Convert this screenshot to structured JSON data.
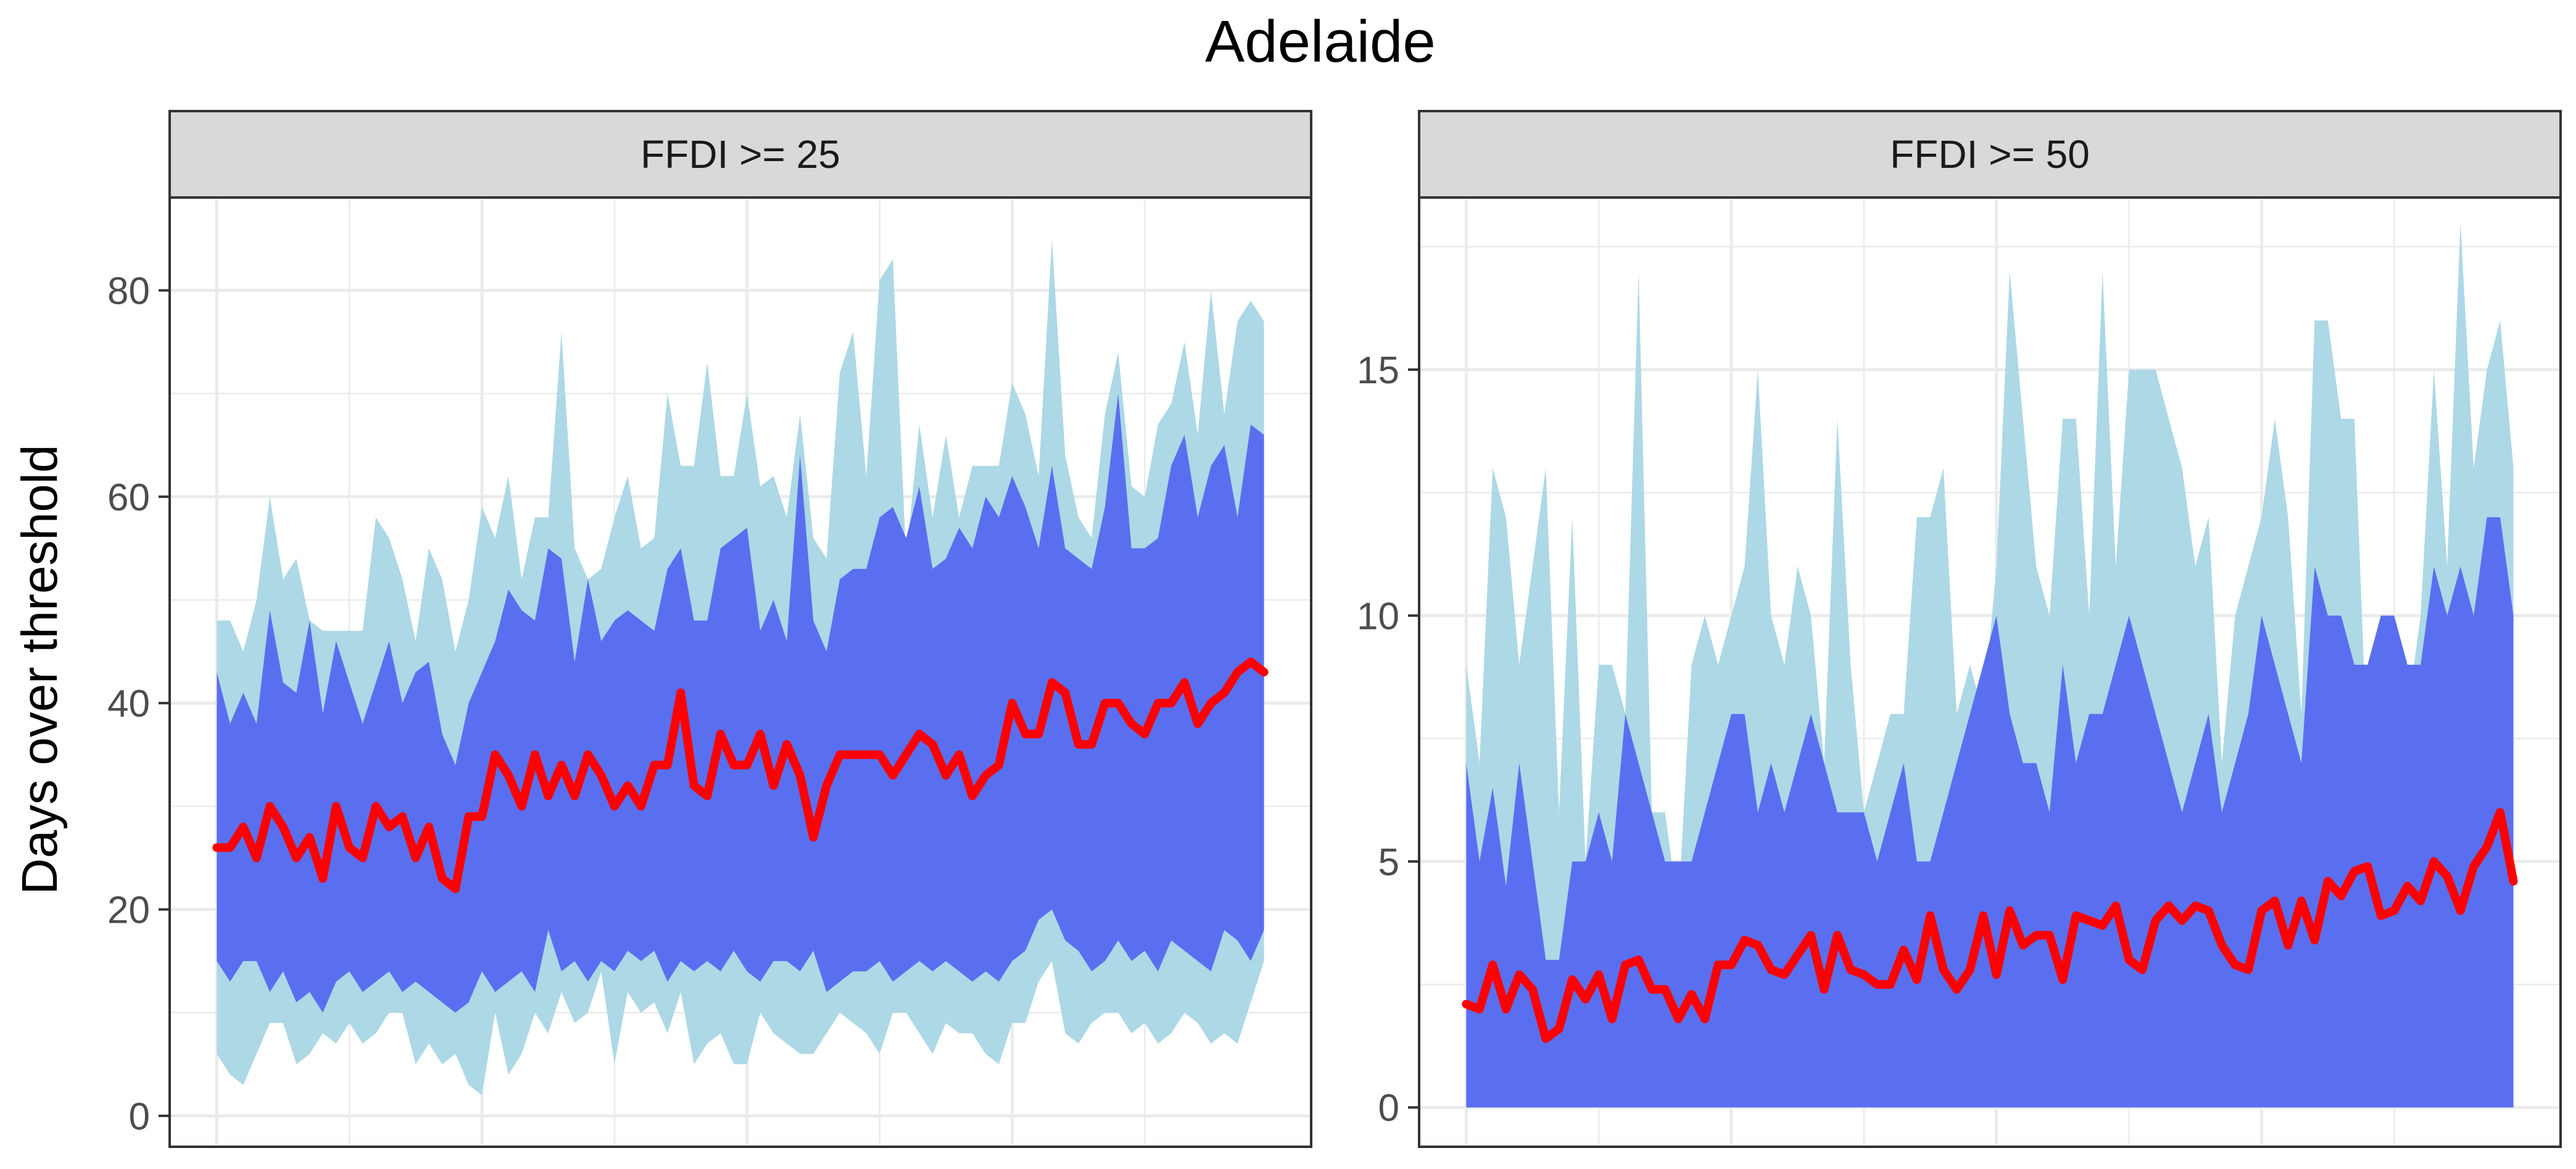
{
  "chart_data": {
    "type": "area",
    "title": "Adelaide",
    "ylabel": "Days over threshold",
    "xlabel": "",
    "x_tick_labels_shown": false,
    "grid": true,
    "legend": "none",
    "colors": {
      "outer_band": "#add8e6",
      "inner_band": "#5a6ff0",
      "line": "#ff0000",
      "grid": "#ebebeb",
      "strip": "#d9d9d9",
      "panel_border": "#333333"
    },
    "x": [
      1,
      2,
      3,
      4,
      5,
      6,
      7,
      8,
      9,
      10,
      11,
      12,
      13,
      14,
      15,
      16,
      17,
      18,
      19,
      20,
      21,
      22,
      23,
      24,
      25,
      26,
      27,
      28,
      29,
      30,
      31,
      32,
      33,
      34,
      35,
      36,
      37,
      38,
      39,
      40,
      41,
      42,
      43,
      44,
      45,
      46,
      47,
      48,
      49,
      50,
      51,
      52,
      53,
      54,
      55,
      56,
      57,
      58,
      59,
      60,
      61,
      62,
      63,
      64,
      65,
      66,
      67,
      68,
      69,
      70,
      71,
      72,
      73,
      74,
      75,
      76,
      77,
      78,
      79,
      80
    ],
    "panels": [
      {
        "label": "FFDI >= 25",
        "ylim": [
          -3,
          89
        ],
        "y_ticks": [
          0,
          20,
          40,
          60,
          80
        ],
        "outer_upper": [
          48,
          48,
          45,
          50,
          60,
          52,
          54,
          48,
          47,
          47,
          47,
          47,
          58,
          56,
          52,
          46,
          55,
          52,
          45,
          50,
          59,
          56,
          62,
          52,
          58,
          58,
          76,
          55,
          52,
          53,
          58,
          62,
          55,
          56,
          70,
          63,
          63,
          73,
          62,
          62,
          70,
          61,
          62,
          58,
          68,
          56,
          54,
          72,
          76,
          62,
          81,
          83,
          54,
          67,
          58,
          66,
          58,
          63,
          63,
          63,
          71,
          68,
          62,
          85,
          64,
          58,
          56,
          68,
          74,
          61,
          60,
          67,
          69,
          75,
          66,
          80,
          68,
          77,
          79,
          77
        ],
        "inner_upper": [
          43,
          38,
          41,
          38,
          49,
          42,
          41,
          48,
          39,
          46,
          42,
          38,
          42,
          46,
          40,
          43,
          44,
          37,
          34,
          40,
          43,
          46,
          51,
          49,
          48,
          55,
          54,
          44,
          52,
          46,
          48,
          49,
          48,
          47,
          53,
          55,
          48,
          48,
          55,
          56,
          57,
          47,
          50,
          46,
          64,
          48,
          45,
          52,
          53,
          53,
          58,
          59,
          56,
          61,
          53,
          54,
          57,
          55,
          60,
          58,
          62,
          59,
          55,
          63,
          55,
          54,
          53,
          59,
          70,
          55,
          55,
          56,
          63,
          66,
          58,
          63,
          65,
          58,
          67,
          66
        ],
        "line": [
          26,
          26,
          28,
          25,
          30,
          28,
          25,
          27,
          23,
          30,
          26,
          25,
          30,
          28,
          29,
          25,
          28,
          23,
          22,
          29,
          29,
          35,
          33,
          30,
          35,
          31,
          34,
          31,
          35,
          33,
          30,
          32,
          30,
          34,
          34,
          41,
          32,
          31,
          37,
          34,
          34,
          37,
          32,
          36,
          33,
          27,
          32,
          35,
          35,
          35,
          35,
          33,
          35,
          37,
          36,
          33,
          35,
          31,
          33,
          34,
          40,
          37,
          37,
          42,
          41,
          36,
          36,
          40,
          40,
          38,
          37,
          40,
          40,
          42,
          38,
          40,
          41,
          43,
          44,
          43
        ],
        "inner_lower": [
          15,
          13,
          15,
          15,
          12,
          14,
          11,
          12,
          10,
          13,
          14,
          12,
          13,
          14,
          12,
          13,
          12,
          11,
          10,
          11,
          14,
          12,
          13,
          14,
          12,
          18,
          14,
          15,
          13,
          15,
          14,
          16,
          15,
          16,
          13,
          15,
          14,
          15,
          14,
          16,
          14,
          13,
          15,
          15,
          14,
          16,
          12,
          13,
          14,
          14,
          15,
          13,
          14,
          15,
          14,
          15,
          14,
          13,
          14,
          13,
          15,
          16,
          19,
          20,
          17,
          16,
          14,
          15,
          17,
          15,
          16,
          14,
          17,
          16,
          15,
          14,
          18,
          17,
          15,
          18
        ],
        "outer_lower": [
          6,
          4,
          3,
          6,
          9,
          9,
          5,
          6,
          8,
          7,
          9,
          7,
          8,
          10,
          10,
          5,
          7,
          5,
          6,
          3,
          2,
          10,
          4,
          6,
          10,
          8,
          12,
          9,
          10,
          14,
          5,
          12,
          10,
          11,
          8,
          12,
          5,
          7,
          8,
          5,
          5,
          10,
          8,
          7,
          6,
          6,
          8,
          10,
          9,
          8,
          6,
          10,
          10,
          8,
          6,
          9,
          8,
          8,
          6,
          5,
          9,
          9,
          13,
          15,
          8,
          7,
          9,
          10,
          10,
          8,
          9,
          7,
          8,
          10,
          9,
          7,
          8,
          7,
          11,
          15
        ]
      },
      {
        "label": "FFDI >= 50",
        "ylim": [
          -0.8,
          18.5
        ],
        "y_ticks": [
          0,
          5,
          10,
          15
        ],
        "outer_upper": [
          9,
          7,
          13,
          12,
          9,
          11,
          13,
          6,
          12,
          5,
          9,
          9,
          8,
          17,
          6,
          6,
          4,
          9,
          10,
          9,
          10,
          11,
          15,
          10,
          9,
          11,
          10,
          7,
          14,
          9,
          6,
          7,
          8,
          8,
          12,
          12,
          13,
          8,
          9,
          8,
          11,
          17,
          14,
          11,
          10,
          14,
          14,
          10,
          17,
          11,
          15,
          15,
          15,
          14,
          13,
          11,
          12,
          7,
          10,
          11,
          12,
          14,
          12,
          8,
          16,
          16,
          14,
          14,
          7,
          7,
          8,
          8,
          10,
          15,
          11,
          18,
          13,
          15,
          16,
          13
        ],
        "inner_upper": [
          7,
          5,
          6.5,
          4.5,
          7,
          5,
          3,
          3,
          5,
          5,
          6,
          5,
          8,
          7,
          6,
          5,
          5,
          5,
          6,
          7,
          8,
          8,
          6,
          7,
          6,
          7,
          8,
          7,
          6,
          6,
          6,
          5,
          6,
          7,
          5,
          5,
          6,
          7,
          8,
          9,
          10,
          8,
          7,
          7,
          6,
          9,
          7,
          8,
          8,
          9,
          10,
          9,
          8,
          7,
          6,
          7,
          8,
          6,
          7,
          8,
          10,
          9,
          8,
          7,
          11,
          10,
          10,
          9,
          9,
          10,
          10,
          9,
          9,
          11,
          10,
          11,
          10,
          12,
          12,
          10
        ],
        "line": [
          2.1,
          2.0,
          2.9,
          2.0,
          2.7,
          2.4,
          1.4,
          1.6,
          2.6,
          2.2,
          2.7,
          1.8,
          2.9,
          3.0,
          2.4,
          2.4,
          1.8,
          2.3,
          1.8,
          2.9,
          2.9,
          3.4,
          3.3,
          2.8,
          2.7,
          3.1,
          3.5,
          2.4,
          3.5,
          2.8,
          2.7,
          2.5,
          2.5,
          3.2,
          2.6,
          3.9,
          2.8,
          2.4,
          2.8,
          3.9,
          2.7,
          4.0,
          3.3,
          3.5,
          3.5,
          2.6,
          3.9,
          3.8,
          3.7,
          4.1,
          3.0,
          2.8,
          3.8,
          4.1,
          3.8,
          4.1,
          4.0,
          3.3,
          2.9,
          2.8,
          4.0,
          4.2,
          3.3,
          4.2,
          3.4,
          4.6,
          4.3,
          4.8,
          4.9,
          3.9,
          4.0,
          4.5,
          4.2,
          5.0,
          4.7,
          4.0,
          4.9,
          5.3,
          6.0,
          4.6
        ],
        "inner_lower": [
          0,
          0,
          0,
          0,
          0,
          0,
          0,
          0,
          0,
          0,
          0,
          0,
          0,
          0,
          0,
          0,
          0,
          0,
          0,
          0,
          0,
          0,
          0,
          0,
          0,
          0,
          0,
          0,
          0,
          0,
          0,
          0,
          0,
          0,
          0,
          0,
          0,
          0,
          0,
          0,
          0,
          0,
          0,
          0,
          0,
          0,
          0,
          0,
          0,
          0,
          0,
          0,
          0,
          0,
          0,
          0,
          0,
          0,
          0,
          0,
          0,
          0,
          0,
          0,
          0,
          0,
          0,
          0,
          0,
          0,
          0,
          0,
          0,
          0,
          0,
          0,
          0,
          0,
          0,
          0
        ],
        "outer_lower": [
          0,
          0,
          0,
          0,
          0,
          0,
          0,
          0,
          0,
          0,
          0,
          0,
          0,
          0,
          0,
          0,
          0,
          0,
          0,
          0,
          0,
          0,
          0,
          0,
          0,
          0,
          0,
          0,
          0,
          0,
          0,
          0,
          0,
          0,
          0,
          0,
          0,
          0,
          0,
          0,
          0,
          0,
          0,
          0,
          0,
          0,
          0,
          0,
          0,
          0,
          0,
          0,
          0,
          0,
          0,
          0,
          0,
          0,
          0,
          0,
          0,
          0,
          0,
          0,
          0,
          0,
          0,
          0,
          0,
          0,
          0,
          0,
          0,
          0,
          0,
          0,
          0,
          0,
          0,
          0
        ]
      }
    ]
  }
}
